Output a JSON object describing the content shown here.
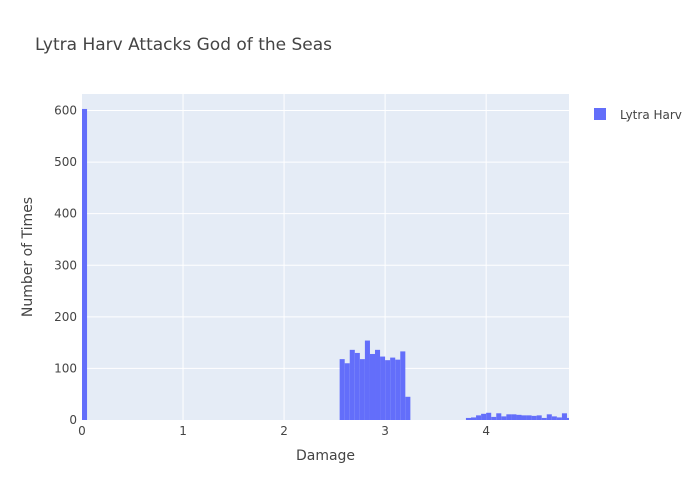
{
  "chart_data": {
    "type": "bar",
    "title": "Lytra Harv Attacks God of the Seas",
    "xlabel": "Damage",
    "ylabel": "Number of Times",
    "xlim": [
      0,
      4.82
    ],
    "ylim": [
      0,
      632
    ],
    "x_ticks": [
      0,
      1,
      2,
      3,
      4
    ],
    "y_ticks": [
      0,
      100,
      200,
      300,
      400,
      500,
      600
    ],
    "grid": true,
    "legend_position": "top-right",
    "bin_width": 0.05,
    "colors": {
      "bar": "#636efa",
      "plot_bg": "#e5ecf6",
      "grid": "#ffffff",
      "text": "#444444"
    },
    "series": [
      {
        "name": "Lytra Harv",
        "bins": [
          {
            "x0": 0.0,
            "count": 603
          },
          {
            "x0": 2.55,
            "count": 118
          },
          {
            "x0": 2.6,
            "count": 110
          },
          {
            "x0": 2.65,
            "count": 136
          },
          {
            "x0": 2.7,
            "count": 130
          },
          {
            "x0": 2.75,
            "count": 118
          },
          {
            "x0": 2.8,
            "count": 154
          },
          {
            "x0": 2.85,
            "count": 128
          },
          {
            "x0": 2.9,
            "count": 136
          },
          {
            "x0": 2.95,
            "count": 123
          },
          {
            "x0": 3.0,
            "count": 116
          },
          {
            "x0": 3.05,
            "count": 121
          },
          {
            "x0": 3.1,
            "count": 117
          },
          {
            "x0": 3.15,
            "count": 133
          },
          {
            "x0": 3.2,
            "count": 45
          },
          {
            "x0": 3.8,
            "count": 4
          },
          {
            "x0": 3.85,
            "count": 5
          },
          {
            "x0": 3.9,
            "count": 9
          },
          {
            "x0": 3.95,
            "count": 12
          },
          {
            "x0": 4.0,
            "count": 14
          },
          {
            "x0": 4.05,
            "count": 6
          },
          {
            "x0": 4.1,
            "count": 13
          },
          {
            "x0": 4.15,
            "count": 7
          },
          {
            "x0": 4.2,
            "count": 11
          },
          {
            "x0": 4.25,
            "count": 11
          },
          {
            "x0": 4.3,
            "count": 10
          },
          {
            "x0": 4.35,
            "count": 9
          },
          {
            "x0": 4.4,
            "count": 9
          },
          {
            "x0": 4.45,
            "count": 8
          },
          {
            "x0": 4.5,
            "count": 9
          },
          {
            "x0": 4.55,
            "count": 4
          },
          {
            "x0": 4.6,
            "count": 11
          },
          {
            "x0": 4.65,
            "count": 7
          },
          {
            "x0": 4.7,
            "count": 5
          },
          {
            "x0": 4.75,
            "count": 13
          },
          {
            "x0": 4.8,
            "count": 4
          }
        ]
      }
    ]
  }
}
